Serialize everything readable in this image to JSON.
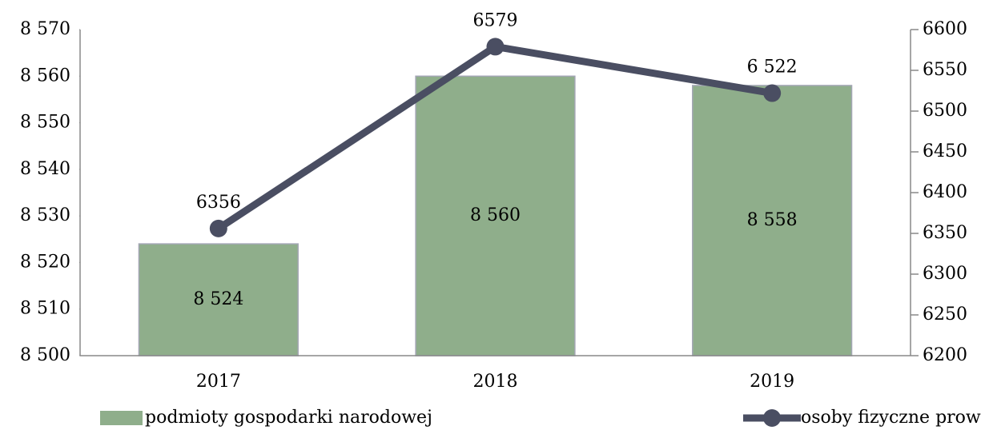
{
  "chart_data": {
    "type": "combo",
    "categories": [
      "2017",
      "2018",
      "2019"
    ],
    "series": [
      {
        "name": "podmioty gospodarki narodowej",
        "type": "bar",
        "color": "#8fae8b",
        "values": [
          8524,
          8560,
          8558
        ],
        "value_labels": [
          "8 524",
          "8 560",
          "8 558"
        ]
      },
      {
        "name": "osoby fizyczne prowadzące działalność",
        "type": "line",
        "axis": "y2",
        "color": "#4a4e62",
        "values": [
          6356,
          6579,
          6522
        ],
        "value_labels": [
          "6356",
          "6579",
          "6 522"
        ]
      }
    ],
    "ylim": [
      8500,
      8570
    ],
    "yticks": [
      {
        "value": 8500,
        "label": "8 500"
      },
      {
        "value": 8510,
        "label": "8 510"
      },
      {
        "value": 8520,
        "label": "8 520"
      },
      {
        "value": 8530,
        "label": "8 530"
      },
      {
        "value": 8540,
        "label": "8 540"
      },
      {
        "value": 8550,
        "label": "8 550"
      },
      {
        "value": 8560,
        "label": "8 560"
      },
      {
        "value": 8570,
        "label": "8 570"
      }
    ],
    "y2lim": [
      6200,
      6600
    ],
    "y2ticks": [
      6200,
      6250,
      6300,
      6350,
      6400,
      6450,
      6500,
      6550,
      6600
    ],
    "legend": "bottom"
  }
}
